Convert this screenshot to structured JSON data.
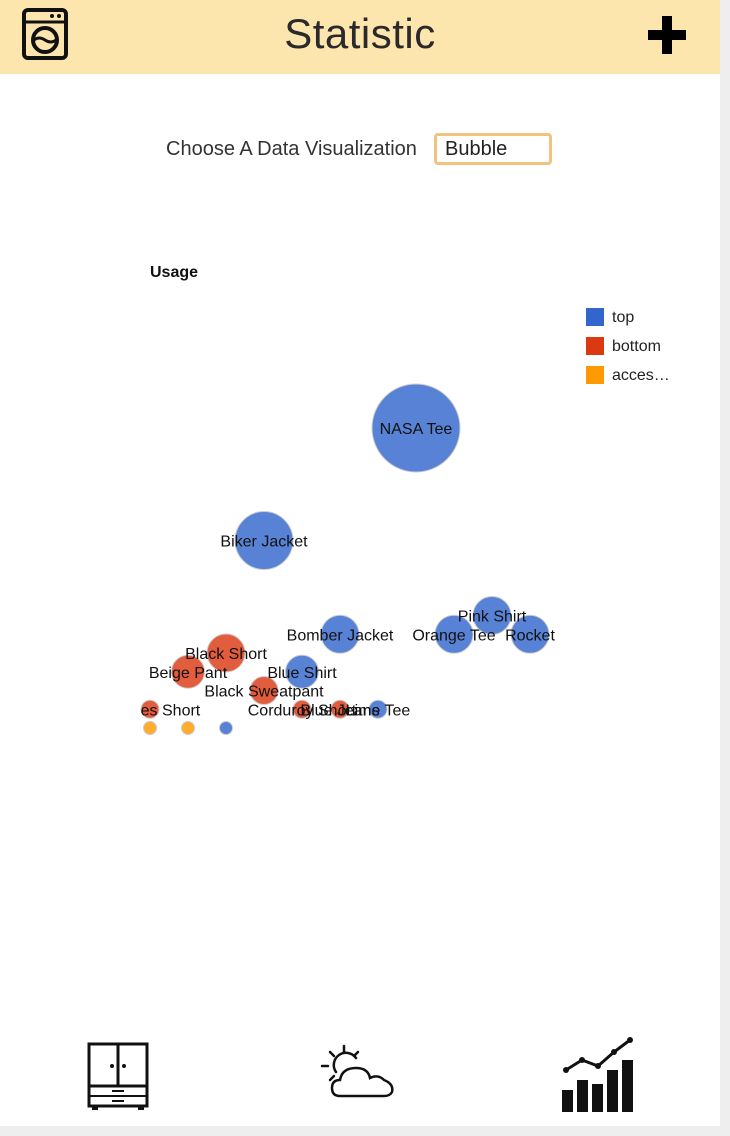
{
  "header": {
    "title": "Statistic",
    "left_icon": "washing-machine-icon",
    "right_icon": "plus-icon",
    "background": "#fde5ae"
  },
  "controls": {
    "choose_label": "Choose A Data Visualization",
    "selected_visualization": "Bubble"
  },
  "chart_data": {
    "type": "bubble",
    "title": "Usage",
    "legend_position": "right",
    "series": [
      {
        "name": "top",
        "color": "#3366cc"
      },
      {
        "name": "bottom",
        "color": "#dc3912"
      },
      {
        "name": "acces…",
        "color": "#ff9900"
      }
    ],
    "points": [
      {
        "label": "NASA Tee",
        "series": "top",
        "x": 8,
        "y": 8,
        "size": 8
      },
      {
        "label": "Biker Jacket",
        "series": "top",
        "x": 4,
        "y": 5,
        "size": 5
      },
      {
        "label": "Pink Shirt",
        "series": "top",
        "x": 10,
        "y": 3,
        "size": 3
      },
      {
        "label": "Bomber Jacket",
        "series": "top",
        "x": 6,
        "y": 2.5,
        "size": 3
      },
      {
        "label": "Orange Tee",
        "series": "top",
        "x": 9,
        "y": 2.5,
        "size": 3
      },
      {
        "label": "Rocket",
        "series": "top",
        "x": 11,
        "y": 2.5,
        "size": 3
      },
      {
        "label": "Black Short",
        "series": "bottom",
        "x": 3,
        "y": 2,
        "size": 3
      },
      {
        "label": "Beige Pant",
        "series": "bottom",
        "x": 2,
        "y": 1.5,
        "size": 2.5
      },
      {
        "label": "Blue Shirt",
        "series": "top",
        "x": 5,
        "y": 1.5,
        "size": 2.5
      },
      {
        "label": "Black Sweatpant",
        "series": "bottom",
        "x": 4,
        "y": 1,
        "size": 2
      },
      {
        "label": "Baggies Short",
        "series": "bottom",
        "x": 1,
        "y": 0.5,
        "size": 1
      },
      {
        "label": "Corduroy Short",
        "series": "bottom",
        "x": 5,
        "y": 0.5,
        "size": 1
      },
      {
        "label": "Blue Jeans",
        "series": "bottom",
        "x": 6,
        "y": 0.5,
        "size": 1
      },
      {
        "label": "Lime Tee",
        "series": "top",
        "x": 7,
        "y": 0.5,
        "size": 1
      },
      {
        "label": "",
        "series": "acces…",
        "x": 1,
        "y": 0,
        "size": 0.5
      },
      {
        "label": "",
        "series": "acces…",
        "x": 2,
        "y": 0,
        "size": 0.5
      },
      {
        "label": "",
        "series": "top",
        "x": 3,
        "y": 0,
        "size": 0.5
      }
    ]
  },
  "navbar": {
    "items": [
      {
        "icon": "wardrobe-icon"
      },
      {
        "icon": "partly-cloudy-icon"
      },
      {
        "icon": "statistics-chart-icon"
      }
    ]
  }
}
